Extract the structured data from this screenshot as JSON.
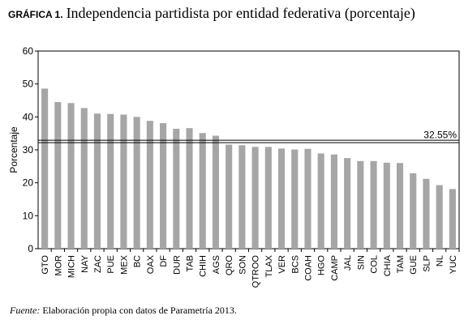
{
  "header": {
    "label": "GRÁFICA 1.",
    "title": "Independencia partidista por entidad federativa (porcentaje)"
  },
  "footer": {
    "source_label": "Fuente:",
    "source_text": "Elaboración propia con datos de Parametría 2013."
  },
  "chart_data": {
    "type": "bar",
    "title": "Independencia partidista por entidad federativa (porcentaje)",
    "xlabel": "",
    "ylabel": "Porcentaje",
    "ylim": [
      0,
      60
    ],
    "yticks": [
      0,
      10,
      20,
      30,
      40,
      50,
      60
    ],
    "grid": false,
    "categories": [
      "GTO",
      "MOR",
      "MICH",
      "NAY",
      "ZAC",
      "PUE",
      "MEX",
      "BC",
      "OAX",
      "DF",
      "DUR",
      "TAB",
      "CHIH",
      "AGS",
      "QRO",
      "SON",
      "QTROO",
      "TLAX",
      "VER",
      "BCS",
      "COAH",
      "HGO",
      "CAMP",
      "JAL",
      "SIN",
      "COL",
      "CHIA",
      "TAM",
      "GUE",
      "SLP",
      "NL",
      "YUC"
    ],
    "values": [
      48.6,
      44.5,
      44.2,
      42.7,
      41.0,
      40.9,
      40.7,
      40.0,
      38.8,
      38.1,
      36.4,
      36.6,
      35.1,
      34.3,
      31.6,
      31.4,
      30.9,
      30.9,
      30.4,
      30.1,
      30.3,
      28.9,
      28.6,
      27.5,
      26.6,
      26.6,
      26.1,
      26.0,
      22.9,
      21.2,
      19.3,
      18.1
    ],
    "reference_line": {
      "value": 32.55,
      "label": "32.55%"
    },
    "colors": {
      "bar": "#a6a6a6",
      "axis": "#000000",
      "reference": "#000000"
    }
  }
}
